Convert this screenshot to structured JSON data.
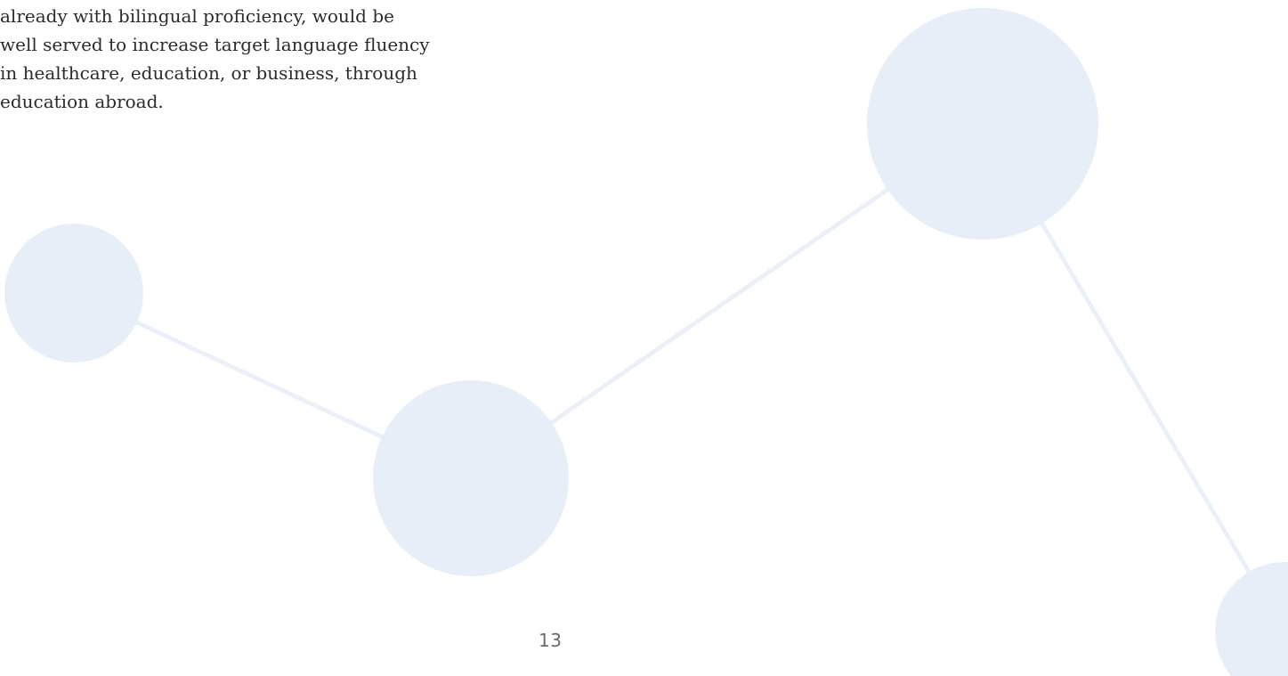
{
  "document": {
    "paragraph_lines": [
      "already with bilingual proficiency, would be",
      "well served to increase target language fluency",
      "in healthcare, education, or business, through",
      "education abroad."
    ],
    "page_number": "13"
  },
  "decoration": {
    "icon": "connected-nodes-graphic",
    "color": "#e8eef8"
  }
}
